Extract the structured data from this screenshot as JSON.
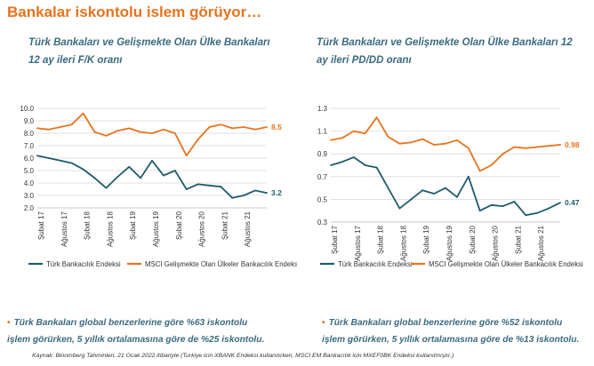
{
  "page": {
    "title": "Bankalar iskontolu islem görüyor…",
    "source": "Kaynak: Bloomberg Tahminleri, 21 Ocak 2022 itibariyle (Turkiye icin XBANK Endeksi kullanılırken, MSCI EM Bankacılık icin MXEF0BK Endeksi kullanılmıştır.)"
  },
  "colors": {
    "accent": "#e8731d",
    "teal": "#1f5c6a",
    "orange": "#e8731d",
    "title_blue": "#3a6a80"
  },
  "charts": [
    {
      "title_line1": "Türk Bankaları ve Gelişmekte Olan Ülke Bankaları",
      "title_line2": "12 ay ileri F/K oranı",
      "note_line1": "Türk Bankaları global benzerlerine göre %63 iskontolu",
      "note_line2": "işlem görürken, 5 yıllık ortalamasına göre de %25 iskontolu."
    },
    {
      "title_line1": "Türk Bankaları ve Gelişmekte Olan Ülke Bankaları 12",
      "title_line2": "ay ileri PD/DD oranı",
      "note_line1": "Türk Bankaları global benzerlerine göre %52 iskontolu",
      "note_line2": "işlem görürken, 5 yıllık ortalamasına göre de %13 iskontolu."
    }
  ],
  "chart_data": [
    {
      "type": "line",
      "title": "Türk Bankaları ve Gelişmekte Olan Ülke Bankaları 12 ay ileri F/K oranı",
      "x_tick_labels": [
        "Şubat 17",
        "Ağustos 17",
        "Şubat 18",
        "Ağustos 18",
        "Şubat 19",
        "Ağustos 19",
        "Şubat 20",
        "Ağustos 20",
        "Şubat 21",
        "Ağustos 21"
      ],
      "x": [
        "2017-02",
        "2017-05",
        "2017-08",
        "2017-11",
        "2018-02",
        "2018-05",
        "2018-08",
        "2018-11",
        "2019-02",
        "2019-05",
        "2019-08",
        "2019-11",
        "2020-02",
        "2020-05",
        "2020-08",
        "2020-11",
        "2021-02",
        "2021-05",
        "2021-08",
        "2021-11",
        "2022-01"
      ],
      "ylim": [
        2.0,
        10.0
      ],
      "yticks": [
        "10.0",
        "9.0",
        "8.0",
        "7.0",
        "6.0",
        "5.0",
        "4.0",
        "3.0",
        "2.0"
      ],
      "grid": true,
      "legend_position": "bottom",
      "series": [
        {
          "name": "Türk Bankacılık Endeksi",
          "color": "#1f5c6a",
          "end_label": "3.2",
          "values": [
            6.2,
            6.0,
            5.8,
            5.6,
            5.1,
            4.4,
            3.6,
            4.5,
            5.3,
            4.4,
            5.8,
            4.6,
            5.0,
            3.5,
            3.9,
            3.8,
            3.7,
            2.8,
            3.0,
            3.4,
            3.2
          ]
        },
        {
          "name": "MSCI Gelişmekte Olan Ülkeler Bankacılık Endeksi",
          "color": "#e8731d",
          "end_label": "8.5",
          "values": [
            8.4,
            8.3,
            8.5,
            8.7,
            9.6,
            8.1,
            7.8,
            8.2,
            8.4,
            8.1,
            8.0,
            8.3,
            8.0,
            6.2,
            7.5,
            8.5,
            8.7,
            8.4,
            8.5,
            8.3,
            8.5
          ]
        }
      ]
    },
    {
      "type": "line",
      "title": "Türk Bankaları ve Gelişmekte Olan Ülke Bankaları 12 ay ileri PD/DD oranı",
      "x_tick_labels": [
        "Şubat 17",
        "Ağustos 17",
        "Şubat 18",
        "Ağustos 18",
        "Şubat 19",
        "Ağustos 19",
        "Şubat 20",
        "Ağustos 20",
        "Şubat 21",
        "Ağustos 21"
      ],
      "x": [
        "2017-02",
        "2017-05",
        "2017-08",
        "2017-11",
        "2018-02",
        "2018-05",
        "2018-08",
        "2018-11",
        "2019-02",
        "2019-05",
        "2019-08",
        "2019-11",
        "2020-02",
        "2020-05",
        "2020-08",
        "2020-11",
        "2021-02",
        "2021-05",
        "2021-08",
        "2021-11",
        "2022-01"
      ],
      "ylim": [
        0.3,
        1.3
      ],
      "yticks": [
        "1.3",
        "1.1",
        "0.9",
        "0.7",
        "0.5",
        "0.3"
      ],
      "grid": true,
      "legend_position": "bottom",
      "series": [
        {
          "name": "Türk Bankacılık Endeksi",
          "color": "#1f5c6a",
          "end_label": "0.47",
          "values": [
            0.8,
            0.83,
            0.87,
            0.8,
            0.78,
            0.6,
            0.42,
            0.5,
            0.58,
            0.55,
            0.6,
            0.52,
            0.7,
            0.4,
            0.45,
            0.44,
            0.48,
            0.36,
            0.38,
            0.42,
            0.47
          ]
        },
        {
          "name": "MSCI Gelişmekte Olan Ülkeler Bankacılık Endeksi",
          "color": "#e8731d",
          "end_label": "0.98",
          "values": [
            1.02,
            1.04,
            1.1,
            1.08,
            1.22,
            1.05,
            0.99,
            1.0,
            1.03,
            0.98,
            0.99,
            1.02,
            0.95,
            0.75,
            0.8,
            0.9,
            0.96,
            0.95,
            0.96,
            0.97,
            0.98
          ]
        }
      ]
    }
  ]
}
